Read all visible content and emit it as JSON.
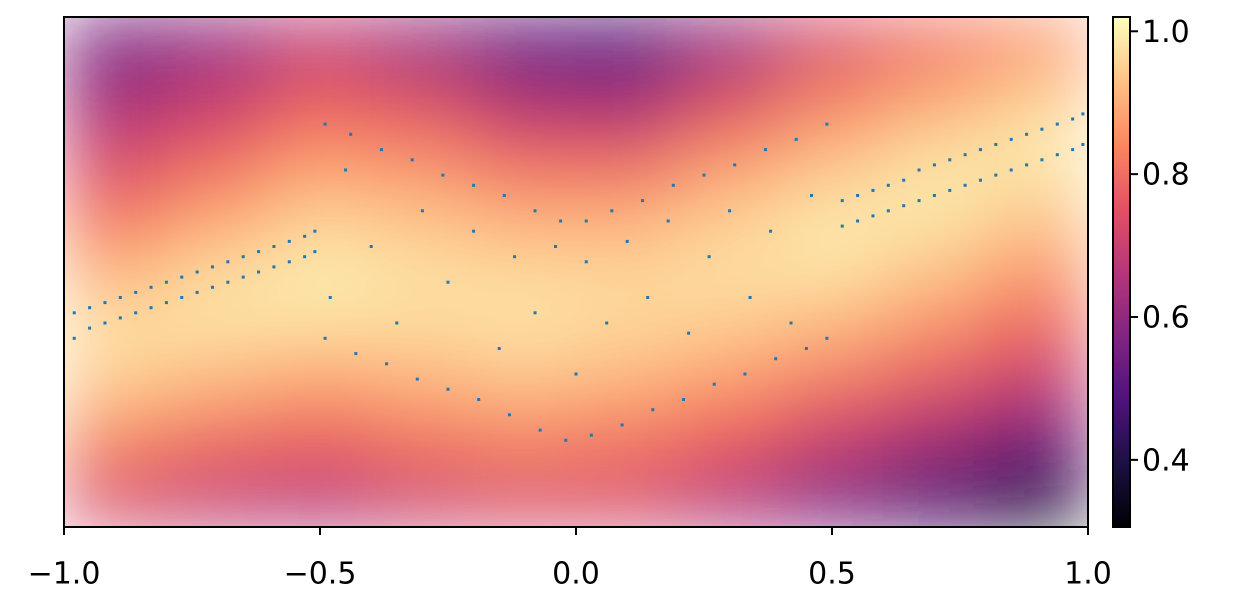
{
  "chart_data": {
    "type": "heatmap",
    "xlim": [
      -1,
      1
    ],
    "ylim": [
      -0.5,
      0.5
    ],
    "xticks": [
      {
        "value": -1,
        "label": "−1.0"
      },
      {
        "value": -0.5,
        "label": "−0.5"
      },
      {
        "value": 0,
        "label": "0.0"
      },
      0.5,
      {
        "value": 1,
        "label": "1.0"
      }
    ],
    "clim": [
      0.306,
      1.02
    ],
    "cticks": [
      0.4,
      0.6,
      0.8,
      {
        "value": 1,
        "label": "1.0"
      }
    ],
    "colormap": [
      "#000004",
      "#1c1044",
      "#4f127b",
      "#812581",
      "#b5367a",
      "#e55064",
      "#fb8761",
      "#fec287",
      "#fcfdbf"
    ],
    "z": [
      [
        0.55,
        0.6,
        0.68,
        0.6,
        0.5,
        0.48,
        0.6,
        0.72,
        0.8,
        0.85
      ],
      [
        0.62,
        0.68,
        0.76,
        0.72,
        0.62,
        0.6,
        0.72,
        0.82,
        0.88,
        0.94
      ],
      [
        0.7,
        0.76,
        0.84,
        0.82,
        0.75,
        0.74,
        0.83,
        0.9,
        0.96,
        1.0
      ],
      [
        0.78,
        0.85,
        0.92,
        0.9,
        0.86,
        0.86,
        0.92,
        0.97,
        1.0,
        0.96
      ],
      [
        0.86,
        0.93,
        0.98,
        0.96,
        0.94,
        0.94,
        0.97,
        1.0,
        0.96,
        0.9
      ],
      [
        0.95,
        0.99,
        1.0,
        0.98,
        0.98,
        0.97,
        0.97,
        0.95,
        0.9,
        0.83
      ],
      [
        0.98,
        0.96,
        0.94,
        0.95,
        0.97,
        0.95,
        0.92,
        0.88,
        0.82,
        0.75
      ],
      [
        0.92,
        0.88,
        0.85,
        0.88,
        0.9,
        0.88,
        0.84,
        0.78,
        0.72,
        0.65
      ],
      [
        0.82,
        0.78,
        0.76,
        0.8,
        0.82,
        0.8,
        0.75,
        0.68,
        0.6,
        0.5
      ],
      [
        0.72,
        0.68,
        0.66,
        0.7,
        0.72,
        0.72,
        0.65,
        0.55,
        0.45,
        0.35
      ]
    ],
    "scatter": {
      "color": "#1f77b4",
      "x": [
        -0.98,
        -0.98,
        -0.95,
        -0.95,
        -0.92,
        -0.92,
        -0.89,
        -0.89,
        -0.86,
        -0.86,
        -0.83,
        -0.83,
        -0.8,
        -0.8,
        -0.77,
        -0.77,
        -0.74,
        -0.74,
        -0.71,
        -0.71,
        -0.68,
        -0.68,
        -0.65,
        -0.65,
        -0.62,
        -0.62,
        -0.59,
        -0.59,
        -0.56,
        -0.56,
        -0.53,
        -0.53,
        -0.51,
        -0.51,
        0.52,
        0.52,
        0.55,
        0.55,
        0.58,
        0.58,
        0.61,
        0.61,
        0.64,
        0.64,
        0.67,
        0.67,
        0.7,
        0.7,
        0.73,
        0.73,
        0.76,
        0.76,
        0.79,
        0.79,
        0.82,
        0.82,
        0.85,
        0.85,
        0.88,
        0.88,
        0.91,
        0.91,
        0.94,
        0.94,
        0.97,
        0.97,
        0.99,
        0.99,
        -0.49,
        -0.44,
        -0.38,
        -0.32,
        -0.26,
        -0.2,
        -0.14,
        -0.08,
        -0.03,
        0.02,
        0.07,
        0.13,
        0.19,
        0.25,
        0.31,
        0.37,
        0.43,
        0.49,
        -0.49,
        -0.43,
        -0.37,
        -0.31,
        -0.25,
        -0.19,
        -0.13,
        -0.07,
        -0.02,
        0.03,
        0.09,
        0.15,
        0.21,
        0.27,
        0.33,
        0.39,
        0.45,
        0.49,
        -0.45,
        -0.4,
        -0.35,
        -0.3,
        -0.25,
        -0.2,
        -0.15,
        -0.12,
        -0.08,
        -0.04,
        0.0,
        0.02,
        0.06,
        0.1,
        0.14,
        0.18,
        0.22,
        0.26,
        0.3,
        0.34,
        0.38,
        0.42,
        0.46,
        -0.48
      ],
      "y": [
        -0.08,
        -0.13,
        -0.07,
        -0.11,
        -0.06,
        -0.1,
        -0.05,
        -0.09,
        -0.04,
        -0.08,
        -0.03,
        -0.07,
        -0.02,
        -0.06,
        -0.01,
        -0.05,
        0.0,
        -0.04,
        0.01,
        -0.03,
        0.02,
        -0.02,
        0.03,
        -0.01,
        0.04,
        0.0,
        0.05,
        0.01,
        0.06,
        0.02,
        0.07,
        0.03,
        0.08,
        0.04,
        0.14,
        0.09,
        0.15,
        0.1,
        0.16,
        0.11,
        0.17,
        0.12,
        0.18,
        0.13,
        0.2,
        0.14,
        0.21,
        0.15,
        0.22,
        0.16,
        0.23,
        0.17,
        0.24,
        0.18,
        0.25,
        0.19,
        0.26,
        0.2,
        0.27,
        0.21,
        0.28,
        0.22,
        0.29,
        0.23,
        0.3,
        0.24,
        0.31,
        0.25,
        0.29,
        0.27,
        0.24,
        0.22,
        0.19,
        0.17,
        0.15,
        0.12,
        0.1,
        0.1,
        0.12,
        0.14,
        0.17,
        0.19,
        0.21,
        0.24,
        0.26,
        0.29,
        -0.13,
        -0.16,
        -0.18,
        -0.21,
        -0.23,
        -0.25,
        -0.28,
        -0.31,
        -0.33,
        -0.32,
        -0.3,
        -0.27,
        -0.25,
        -0.22,
        -0.2,
        -0.17,
        -0.15,
        -0.13,
        0.2,
        0.05,
        -0.1,
        0.12,
        -0.02,
        0.08,
        -0.15,
        0.03,
        -0.08,
        0.05,
        -0.2,
        0.02,
        -0.1,
        0.06,
        -0.05,
        0.1,
        -0.12,
        0.03,
        0.12,
        -0.05,
        0.08,
        -0.1,
        0.15,
        -0.05
      ]
    }
  }
}
